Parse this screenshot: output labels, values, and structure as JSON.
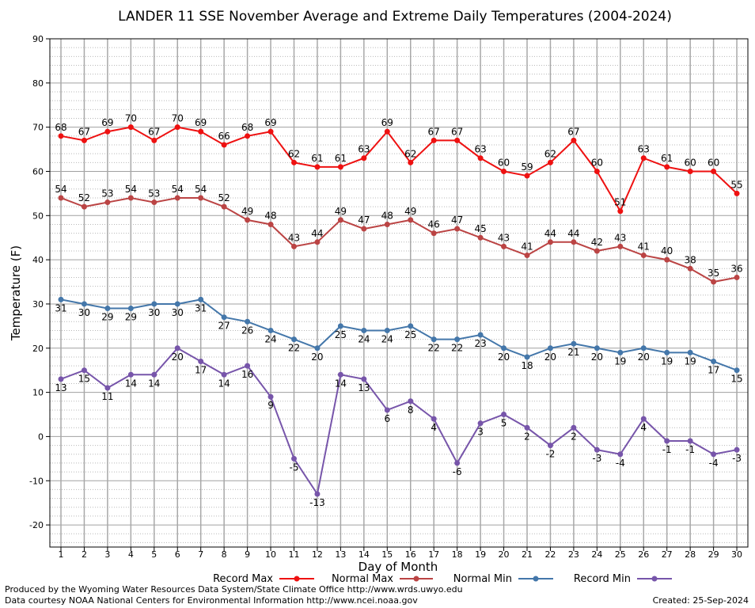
{
  "chart_data": {
    "type": "line",
    "title": "LANDER 11 SSE November Average and Extreme Daily Temperatures (2004-2024)",
    "xlabel": "Day of Month",
    "ylabel": "Temperature (F)",
    "ylim": [
      -25,
      90
    ],
    "yticks": [
      -20,
      -10,
      0,
      10,
      20,
      30,
      40,
      50,
      60,
      70,
      80,
      90
    ],
    "x": [
      1,
      2,
      3,
      4,
      5,
      6,
      7,
      8,
      9,
      10,
      11,
      12,
      13,
      14,
      15,
      16,
      17,
      18,
      19,
      20,
      21,
      22,
      23,
      24,
      25,
      26,
      27,
      28,
      29,
      30
    ],
    "grid": true,
    "legend_position": "bottom",
    "series": [
      {
        "name": "Record Max",
        "color": "#ee1111",
        "label_pos": "above",
        "values": [
          68,
          67,
          69,
          70,
          67,
          70,
          69,
          66,
          68,
          69,
          62,
          61,
          61,
          63,
          69,
          62,
          67,
          67,
          63,
          60,
          59,
          62,
          67,
          60,
          51,
          63,
          61,
          60,
          60,
          55
        ]
      },
      {
        "name": "Normal Max",
        "color": "#bb4444",
        "label_pos": "above",
        "values": [
          54,
          52,
          53,
          54,
          53,
          54,
          54,
          52,
          49,
          48,
          43,
          44,
          49,
          47,
          48,
          49,
          46,
          47,
          45,
          43,
          41,
          44,
          44,
          42,
          43,
          41,
          40,
          38,
          35,
          36
        ]
      },
      {
        "name": "Normal Min",
        "color": "#4477aa",
        "label_pos": "below",
        "values": [
          31,
          30,
          29,
          29,
          30,
          30,
          31,
          27,
          26,
          24,
          22,
          20,
          25,
          24,
          24,
          25,
          22,
          22,
          23,
          20,
          18,
          20,
          21,
          20,
          19,
          20,
          19,
          19,
          17,
          15
        ]
      },
      {
        "name": "Record Min",
        "color": "#7755aa",
        "label_pos": "below",
        "values": [
          13,
          15,
          11,
          14,
          14,
          20,
          17,
          14,
          16,
          9,
          -5,
          -13,
          14,
          13,
          6,
          8,
          4,
          -6,
          3,
          5,
          2,
          -2,
          2,
          -3,
          -4,
          4,
          -1,
          -1,
          -4,
          -3
        ]
      }
    ]
  },
  "footer": {
    "credit_line1": "Produced by the Wyoming Water Resources Data System/State Climate Office http://www.wrds.uwyo.edu",
    "credit_line2": "Data courtesy NOAA National Centers for Environmental Information http://www.ncei.noaa.gov",
    "created": "Created:  25-Sep-2024"
  }
}
